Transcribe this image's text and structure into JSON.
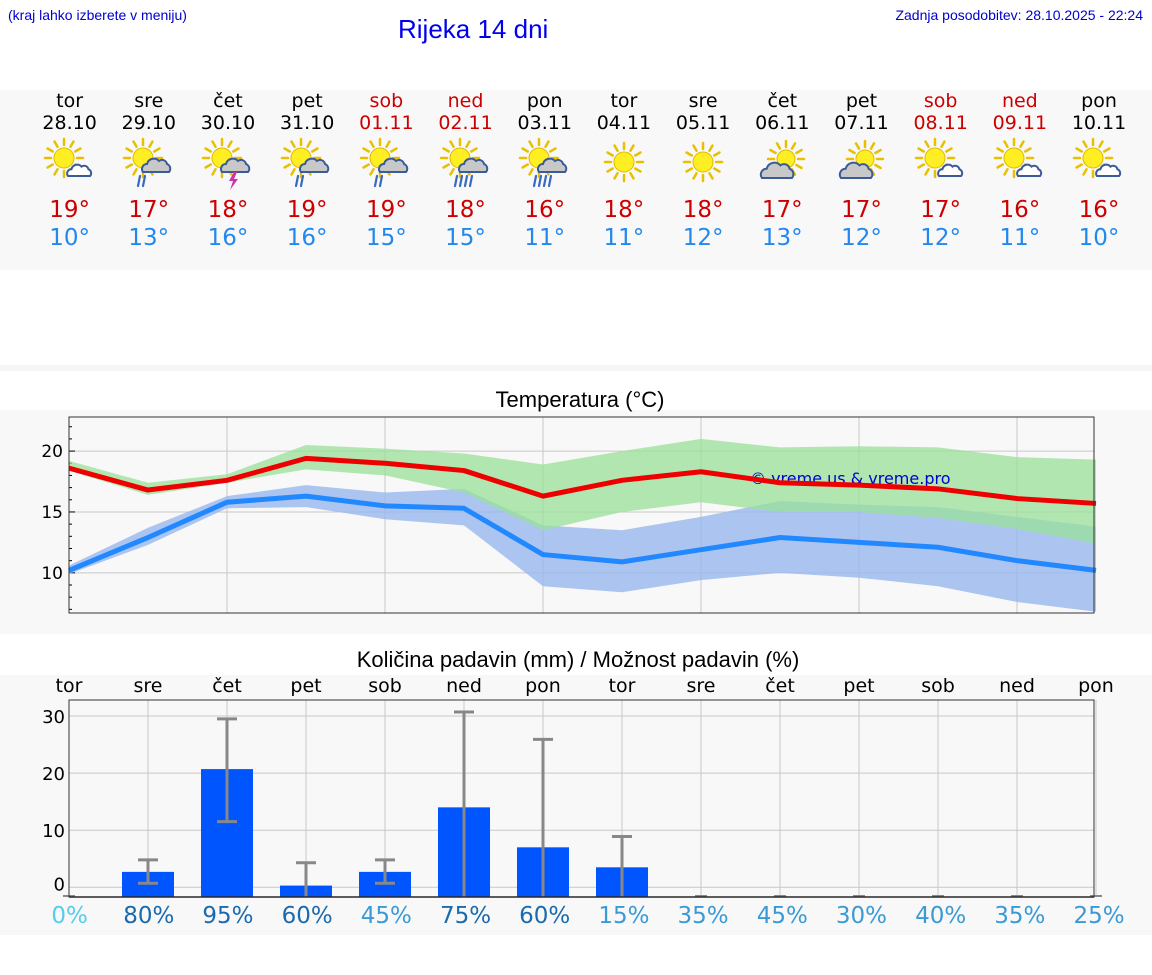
{
  "header": {
    "hint": "(kraj lahko izberete v meniju)",
    "title": "Rijeka 14 dni",
    "updated": "Zadnja posodobitev: 28.10.2025 - 22:24"
  },
  "days": [
    {
      "name": "tor",
      "date": "28.10",
      "weekend": false,
      "icon": "sun-cloud-icon",
      "max": "19°",
      "min": "10°"
    },
    {
      "name": "sre",
      "date": "29.10",
      "weekend": false,
      "icon": "sun-cloud-rain-icon",
      "max": "17°",
      "min": "13°"
    },
    {
      "name": "čet",
      "date": "30.10",
      "weekend": false,
      "icon": "sun-cloud-thunder-icon",
      "max": "18°",
      "min": "16°"
    },
    {
      "name": "pet",
      "date": "31.10",
      "weekend": false,
      "icon": "sun-cloud-rain-icon",
      "max": "19°",
      "min": "16°"
    },
    {
      "name": "sob",
      "date": "01.11",
      "weekend": true,
      "icon": "sun-cloud-rain-icon",
      "max": "19°",
      "min": "15°"
    },
    {
      "name": "ned",
      "date": "02.11",
      "weekend": true,
      "icon": "sun-cloud-heavy-rain-icon",
      "max": "18°",
      "min": "15°"
    },
    {
      "name": "pon",
      "date": "03.11",
      "weekend": false,
      "icon": "sun-cloud-heavy-rain-icon",
      "max": "16°",
      "min": "11°"
    },
    {
      "name": "tor",
      "date": "04.11",
      "weekend": false,
      "icon": "sun-icon",
      "max": "18°",
      "min": "11°"
    },
    {
      "name": "sre",
      "date": "05.11",
      "weekend": false,
      "icon": "sun-icon",
      "max": "18°",
      "min": "12°"
    },
    {
      "name": "čet",
      "date": "06.11",
      "weekend": false,
      "icon": "sun-big-cloud-icon",
      "max": "17°",
      "min": "13°"
    },
    {
      "name": "pet",
      "date": "07.11",
      "weekend": false,
      "icon": "sun-big-cloud-icon",
      "max": "17°",
      "min": "12°"
    },
    {
      "name": "sob",
      "date": "08.11",
      "weekend": true,
      "icon": "sun-cloud-icon",
      "max": "17°",
      "min": "12°"
    },
    {
      "name": "ned",
      "date": "09.11",
      "weekend": true,
      "icon": "sun-cloud-icon",
      "max": "16°",
      "min": "11°"
    },
    {
      "name": "pon",
      "date": "10.11",
      "weekend": false,
      "icon": "sun-cloud-icon",
      "max": "16°",
      "min": "10°"
    }
  ],
  "colors": {
    "max": "#ee0000",
    "min": "#2288ff",
    "max_band": "#99e099",
    "min_band": "#99b8ee",
    "bar": "#0055ff",
    "err": "#888888",
    "grid": "#cccccc"
  },
  "chart_data": [
    {
      "type": "line",
      "title": "Temperatura (°C)",
      "watermark": "© vreme.us & vreme.pro",
      "x": [
        0,
        1,
        2,
        3,
        4,
        5,
        6,
        7,
        8,
        9,
        10,
        11,
        12,
        13
      ],
      "ylim": [
        6.7,
        22.8
      ],
      "yticks": [
        10,
        15,
        20
      ],
      "series": [
        {
          "name": "max",
          "values": [
            18.6,
            16.8,
            17.6,
            19.4,
            19.0,
            18.4,
            16.3,
            17.6,
            18.3,
            17.4,
            17.2,
            16.9,
            16.1,
            15.7
          ],
          "band_low": [
            18.4,
            16.4,
            17.4,
            18.5,
            18.0,
            16.6,
            13.5,
            15.0,
            15.8,
            15.0,
            15.0,
            14.5,
            13.6,
            12.4
          ],
          "band_high": [
            19.2,
            17.4,
            18.1,
            20.5,
            20.2,
            19.8,
            18.9,
            20.0,
            21.0,
            20.3,
            20.4,
            20.3,
            19.5,
            19.3
          ]
        },
        {
          "name": "min",
          "values": [
            10.2,
            12.9,
            15.8,
            16.3,
            15.5,
            15.3,
            11.5,
            10.9,
            11.9,
            12.9,
            12.5,
            12.1,
            11.0,
            10.2
          ],
          "band_low": [
            9.9,
            12.3,
            15.3,
            15.4,
            14.4,
            13.9,
            8.9,
            8.4,
            9.4,
            10.0,
            9.6,
            8.9,
            7.6,
            6.8
          ],
          "band_high": [
            10.6,
            13.7,
            16.3,
            17.2,
            16.6,
            16.9,
            13.9,
            13.5,
            14.6,
            15.9,
            15.6,
            15.4,
            14.6,
            13.8
          ]
        }
      ]
    },
    {
      "type": "bar",
      "title": "Količina padavin (mm) / Možnost padavin (%)",
      "categories": [
        "tor",
        "sre",
        "čet",
        "pet",
        "sob",
        "ned",
        "pon",
        "tor",
        "sre",
        "čet",
        "pet",
        "sob",
        "ned",
        "pon"
      ],
      "values": [
        0,
        2.7,
        20.7,
        0.3,
        2.7,
        14,
        7,
        3.5,
        0,
        0,
        0,
        0,
        0,
        0
      ],
      "err_low": [
        0,
        0.7,
        11.5,
        0,
        0.7,
        0,
        0,
        0,
        0,
        0,
        0,
        0,
        0,
        0
      ],
      "err_high": [
        0,
        4.8,
        29.5,
        4.3,
        4.8,
        30.7,
        25.9,
        8.9,
        0,
        0,
        0,
        0,
        0,
        0
      ],
      "ylim": [
        -1.7,
        32.8
      ],
      "yticks": [
        0,
        10,
        20,
        30
      ],
      "probability": [
        "0%",
        "80%",
        "95%",
        "60%",
        "45%",
        "75%",
        "60%",
        "15%",
        "35%",
        "45%",
        "30%",
        "40%",
        "35%",
        "25%"
      ],
      "probability_colors": [
        "#55ccee",
        "#1a6ab0",
        "#1a6ab0",
        "#1a6ab0",
        "#3a9ad6",
        "#1a6ab0",
        "#1a6ab0",
        "#3a9ad6",
        "#3a9ad6",
        "#3a9ad6",
        "#3a9ad6",
        "#3a9ad6",
        "#3a9ad6",
        "#3a9ad6"
      ]
    }
  ]
}
